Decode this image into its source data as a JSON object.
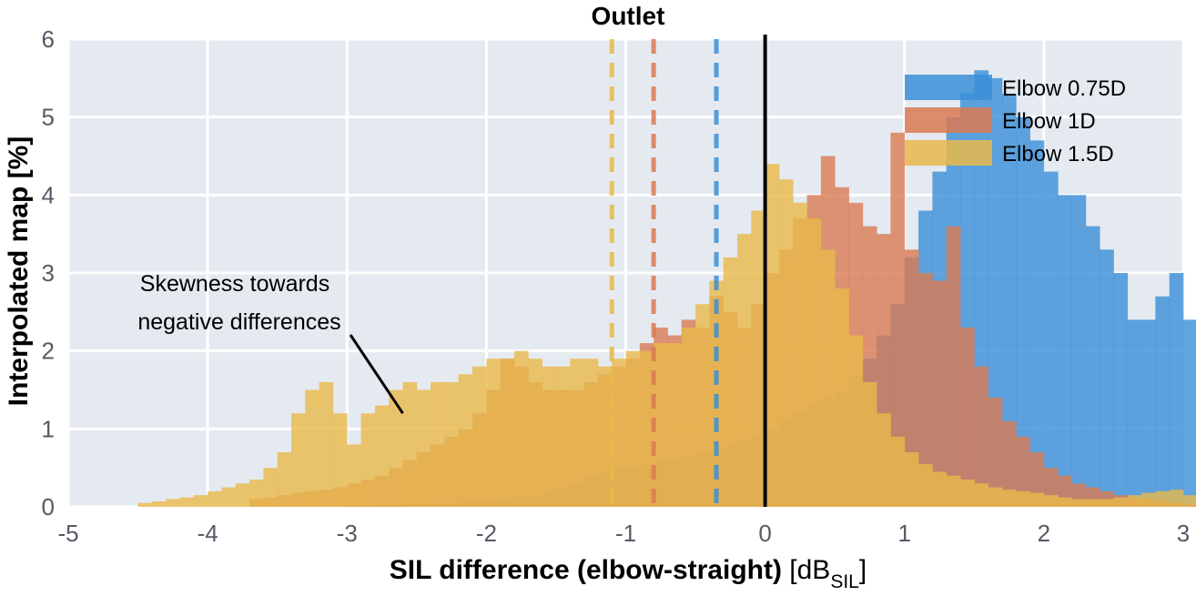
{
  "chart_data": {
    "type": "histogram",
    "title": "Outlet",
    "xlabel": {
      "main": "SIL difference (elbow-straight)",
      "unit_pre": " [dB",
      "unit_sub": "SIL",
      "unit_post": "]"
    },
    "ylabel": "Interpolated map [%]",
    "xlim": [
      -5,
      3
    ],
    "ylim": [
      0,
      6
    ],
    "xticks": [
      -5,
      -4,
      -3,
      -2,
      -1,
      0,
      1,
      2,
      3
    ],
    "yticks": [
      0,
      1,
      2,
      3,
      4,
      5,
      6
    ],
    "grid": true,
    "bin_width": 0.1,
    "legend_position": "top-right",
    "series": [
      {
        "name": "Elbow 0.75D",
        "color": "#3a8fd8",
        "mean_line_x": -0.35,
        "bin_start": -3.0,
        "values": [
          0.02,
          0.02,
          0.03,
          0.03,
          0.04,
          0.04,
          0.05,
          0.05,
          0.06,
          0.07,
          0.08,
          0.1,
          0.12,
          0.15,
          0.2,
          0.25,
          0.3,
          0.4,
          0.45,
          0.5,
          0.5,
          0.55,
          0.6,
          0.6,
          0.65,
          0.7,
          0.75,
          0.8,
          0.85,
          0.9,
          1.0,
          1.1,
          1.2,
          1.3,
          1.4,
          1.5,
          1.7,
          1.9,
          2.2,
          2.6,
          3.2,
          3.8,
          4.3,
          5.0,
          5.3,
          5.6,
          5.5,
          5.3,
          5.0,
          4.7,
          4.3,
          4.0,
          4.0,
          3.6,
          3.3,
          3.0,
          2.4,
          2.4,
          2.7,
          3.0,
          2.4,
          2.6,
          3.05,
          1.9,
          1.3,
          1.0,
          0.8,
          0.7,
          0.55,
          0.45,
          0.35,
          0.3,
          0.25,
          0.2,
          0.15,
          0.15,
          0.1,
          0.1,
          0.08,
          0.1,
          0.08,
          0.08,
          0.05,
          0.05,
          0.03,
          0.02,
          0.02
        ]
      },
      {
        "name": "Elbow 1D",
        "color": "#d97a52",
        "mean_line_x": -0.8,
        "bin_start": -3.7,
        "values": [
          0.1,
          0.12,
          0.15,
          0.18,
          0.2,
          0.22,
          0.25,
          0.3,
          0.35,
          0.4,
          0.5,
          0.6,
          0.7,
          0.8,
          0.9,
          1.0,
          1.2,
          1.5,
          1.9,
          1.8,
          1.6,
          1.5,
          1.5,
          1.5,
          1.6,
          1.7,
          1.8,
          1.9,
          2.1,
          2.3,
          2.2,
          2.4,
          2.3,
          2.7,
          2.5,
          2.3,
          2.6,
          3.0,
          3.3,
          3.7,
          4.0,
          4.5,
          4.1,
          3.9,
          3.6,
          3.5,
          4.8,
          3.3,
          3.0,
          2.9,
          3.6,
          2.3,
          1.8,
          1.4,
          1.1,
          0.9,
          0.7,
          0.5,
          0.4,
          0.3,
          0.25,
          0.2,
          0.15,
          0.12,
          0.1,
          0.08,
          0.05,
          0.04,
          0.03,
          0.02
        ]
      },
      {
        "name": "Elbow 1.5D",
        "color": "#e9b94a",
        "mean_line_x": -1.1,
        "bin_start": -4.5,
        "values": [
          0.05,
          0.07,
          0.1,
          0.12,
          0.15,
          0.2,
          0.25,
          0.3,
          0.35,
          0.5,
          0.7,
          1.2,
          1.5,
          1.6,
          1.2,
          0.8,
          1.2,
          1.3,
          1.5,
          1.6,
          1.5,
          1.6,
          1.6,
          1.7,
          1.8,
          1.9,
          1.9,
          2.0,
          1.9,
          1.8,
          1.8,
          1.9,
          1.9,
          1.8,
          1.9,
          2.0,
          2.0,
          2.1,
          2.1,
          2.3,
          2.6,
          2.9,
          3.2,
          3.5,
          3.8,
          4.4,
          4.2,
          3.9,
          3.7,
          3.3,
          2.8,
          2.2,
          1.6,
          1.2,
          0.9,
          0.7,
          0.55,
          0.45,
          0.4,
          0.35,
          0.3,
          0.25,
          0.22,
          0.2,
          0.18,
          0.15,
          0.12,
          0.1,
          0.1,
          0.1,
          0.12,
          0.15,
          0.18,
          0.2,
          0.22,
          0.15,
          0.1,
          0.08,
          0.25,
          0.3,
          0.08,
          0.05
        ]
      }
    ],
    "reference_line_x": 0,
    "annotation": {
      "lines": [
        "Skewness towards",
        "negative differences"
      ],
      "arrow_to": [
        -2.6,
        1.2
      ]
    }
  }
}
